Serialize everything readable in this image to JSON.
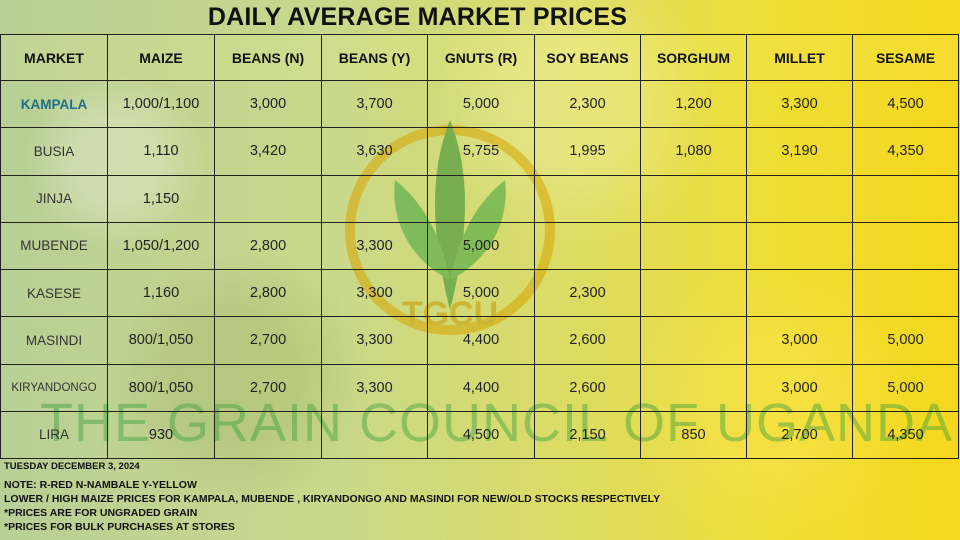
{
  "title": "DAILY AVERAGE MARKET PRICES",
  "watermark": "THE GRAIN COUNCIL OF UGANDA",
  "logo_text": "TGCU",
  "table": {
    "headers": [
      "MARKET",
      "MAIZE",
      "BEANS (N)",
      "BEANS (Y)",
      "GNUTS (R)",
      "SOY BEANS",
      "SORGHUM",
      "MILLET",
      "SESAME"
    ],
    "rows": [
      [
        "KAMPALA",
        "1,000/1,100",
        "3,000",
        "3,700",
        "5,000",
        "2,300",
        "1,200",
        "3,300",
        "4,500"
      ],
      [
        "BUSIA",
        "1,110",
        "3,420",
        "3,630",
        "5,755",
        "1,995",
        "1,080",
        "3,190",
        "4,350"
      ],
      [
        "JINJA",
        "1,150",
        "",
        "",
        "",
        "",
        "",
        "",
        ""
      ],
      [
        "MUBENDE",
        "1,050/1,200",
        "2,800",
        "3,300",
        "5,000",
        "",
        "",
        "",
        ""
      ],
      [
        "KASESE",
        "1,160",
        "2,800",
        "3,300",
        "5,000",
        "2,300",
        "",
        "",
        ""
      ],
      [
        "MASINDI",
        "800/1,050",
        "2,700",
        "3,300",
        "4,400",
        "2,600",
        "",
        "3,000",
        "5,000"
      ],
      [
        "KIRYANDONGO",
        "800/1,050",
        "2,700",
        "3,300",
        "4,400",
        "2,600",
        "",
        "3,000",
        "5,000"
      ],
      [
        "LIRA",
        "930",
        "",
        "",
        "4,500",
        "2,150",
        "850",
        "2,700",
        "4,350"
      ]
    ]
  },
  "notes": {
    "date": "TUESDAY DECEMBER 3, 2024",
    "lines": [
      "NOTE: R-RED N-NAMBALE Y-YELLOW",
      "LOWER / HIGH MAIZE  PRICES FOR KAMPALA, MUBENDE , KIRYANDONGO AND MASINDI  FOR NEW/OLD  STOCKS RESPECTIVELY",
      "*PRICES ARE FOR UNGRADED GRAIN",
      "*PRICES FOR BULK PURCHASES AT STORES"
    ]
  }
}
